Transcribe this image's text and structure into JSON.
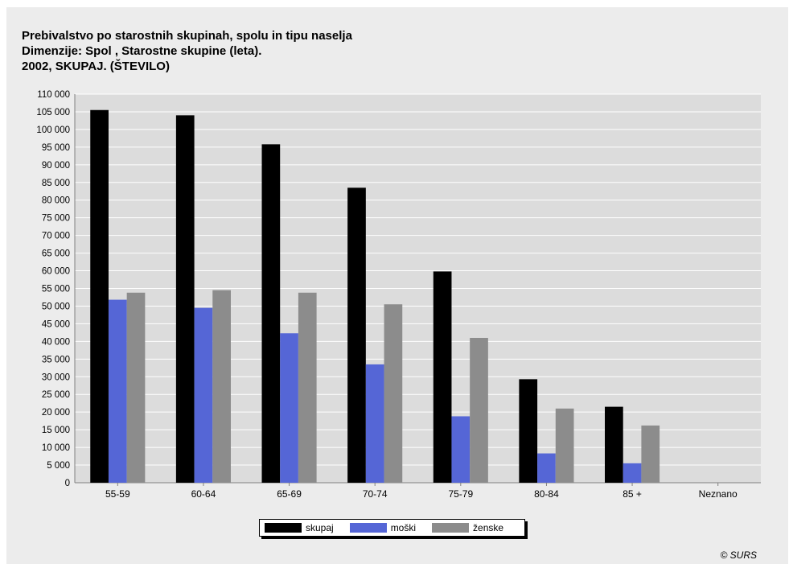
{
  "title_lines": [
    "Prebivalstvo po starostnih skupinah, spolu in tipu naselja",
    "Dimenzije: Spol , Starostne skupine (leta).",
    "2002, SKUPAJ. (ŠTEVILO)"
  ],
  "copyright": "© SURS",
  "colors": {
    "background": "#ececec",
    "plot_bg": "#dcdcdc",
    "grid": "#ffffff",
    "skupaj": "#000000",
    "moski": "#5566d6",
    "zenske": "#8c8c8c"
  },
  "chart_data": {
    "type": "bar",
    "categories": [
      "55-59",
      "60-64",
      "65-69",
      "70-74",
      "75-79",
      "80-84",
      "85 +",
      "Neznano"
    ],
    "series": [
      {
        "name": "skupaj",
        "color": "#000000",
        "values": [
          105500,
          104000,
          95800,
          83500,
          59800,
          29300,
          21500,
          0
        ]
      },
      {
        "name": "moški",
        "color": "#5566d6",
        "values": [
          51800,
          49500,
          42300,
          33500,
          18800,
          8300,
          5500,
          0
        ]
      },
      {
        "name": "ženske",
        "color": "#8c8c8c",
        "values": [
          53800,
          54500,
          53800,
          50500,
          41000,
          21000,
          16200,
          0
        ]
      }
    ],
    "ylim": [
      0,
      110000
    ],
    "y_tick_step": 5000,
    "y_tick_labels": [
      "0",
      "5 000",
      "10 000",
      "15 000",
      "20 000",
      "25 000",
      "30 000",
      "35 000",
      "40 000",
      "45 000",
      "50 000",
      "55 000",
      "60 000",
      "65 000",
      "70 000",
      "75 000",
      "80 000",
      "85 000",
      "90 000",
      "95 000",
      "100 000",
      "105 000",
      "110 000"
    ],
    "grid": true,
    "legend_position": "bottom-center",
    "xlabel": "",
    "ylabel": ""
  }
}
